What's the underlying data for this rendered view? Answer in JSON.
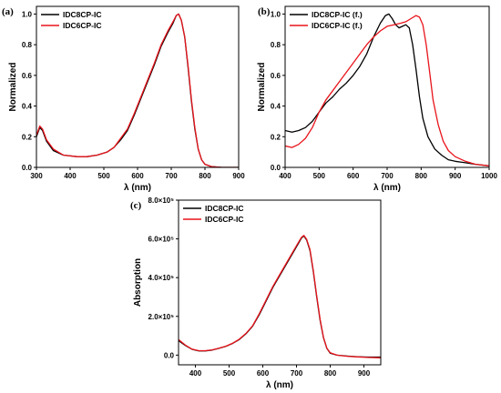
{
  "chart_data": [
    {
      "panel_label": "(a)",
      "type": "line",
      "xlabel": "λ (nm)",
      "ylabel": "Normalized",
      "xlim": [
        300,
        900
      ],
      "ylim": [
        0.0,
        1.05
      ],
      "xticks": [
        300,
        400,
        500,
        600,
        700,
        800,
        900
      ],
      "yticks": [
        0.0,
        0.2,
        0.4,
        0.6,
        0.8,
        1.0
      ],
      "xtick_labels": [
        "300",
        "400",
        "500",
        "600",
        "700",
        "800",
        "900"
      ],
      "ytick_labels": [
        "0.0",
        "0.2",
        "0.4",
        "0.6",
        "0.8",
        "1.0"
      ],
      "legend": "top-left",
      "series": [
        {
          "name": "IDC8CP-IC",
          "color": "#000000",
          "points": [
            [
              300,
              0.2
            ],
            [
              310,
              0.26
            ],
            [
              318,
              0.24
            ],
            [
              330,
              0.17
            ],
            [
              350,
              0.11
            ],
            [
              380,
              0.08
            ],
            [
              420,
              0.07
            ],
            [
              450,
              0.07
            ],
            [
              480,
              0.08
            ],
            [
              510,
              0.1
            ],
            [
              530,
              0.13
            ],
            [
              550,
              0.18
            ],
            [
              570,
              0.24
            ],
            [
              590,
              0.34
            ],
            [
              610,
              0.45
            ],
            [
              630,
              0.56
            ],
            [
              650,
              0.67
            ],
            [
              670,
              0.79
            ],
            [
              690,
              0.88
            ],
            [
              705,
              0.94
            ],
            [
              715,
              0.99
            ],
            [
              722,
              1.0
            ],
            [
              730,
              0.96
            ],
            [
              740,
              0.85
            ],
            [
              750,
              0.65
            ],
            [
              760,
              0.43
            ],
            [
              770,
              0.25
            ],
            [
              780,
              0.12
            ],
            [
              790,
              0.05
            ],
            [
              800,
              0.02
            ],
            [
              820,
              0.005
            ],
            [
              850,
              0.0
            ],
            [
              900,
              0.0
            ]
          ]
        },
        {
          "name": "IDC6CP-IC",
          "color": "#e8141b",
          "points": [
            [
              300,
              0.21
            ],
            [
              310,
              0.27
            ],
            [
              318,
              0.25
            ],
            [
              330,
              0.18
            ],
            [
              350,
              0.12
            ],
            [
              380,
              0.08
            ],
            [
              420,
              0.07
            ],
            [
              450,
              0.07
            ],
            [
              480,
              0.08
            ],
            [
              510,
              0.1
            ],
            [
              530,
              0.13
            ],
            [
              550,
              0.19
            ],
            [
              570,
              0.25
            ],
            [
              590,
              0.35
            ],
            [
              610,
              0.46
            ],
            [
              630,
              0.57
            ],
            [
              650,
              0.68
            ],
            [
              670,
              0.8
            ],
            [
              690,
              0.89
            ],
            [
              705,
              0.95
            ],
            [
              715,
              0.99
            ],
            [
              722,
              1.0
            ],
            [
              730,
              0.96
            ],
            [
              740,
              0.85
            ],
            [
              750,
              0.66
            ],
            [
              760,
              0.44
            ],
            [
              770,
              0.26
            ],
            [
              780,
              0.12
            ],
            [
              790,
              0.05
            ],
            [
              800,
              0.02
            ],
            [
              820,
              0.005
            ],
            [
              850,
              0.0
            ],
            [
              900,
              0.0
            ]
          ]
        }
      ]
    },
    {
      "panel_label": "(b)",
      "type": "line",
      "xlabel": "λ (nm)",
      "ylabel": "Normalized",
      "xlim": [
        400,
        1000
      ],
      "ylim": [
        0.0,
        1.05
      ],
      "xticks": [
        400,
        500,
        600,
        700,
        800,
        900,
        1000
      ],
      "yticks": [
        0.0,
        0.2,
        0.4,
        0.6,
        0.8,
        1.0
      ],
      "xtick_labels": [
        "400",
        "500",
        "600",
        "700",
        "800",
        "900",
        "1000"
      ],
      "ytick_labels": [
        "0.0",
        "0.2",
        "0.4",
        "0.6",
        "0.8",
        "1.0"
      ],
      "legend": "top-left",
      "series": [
        {
          "name": "IDC8CP-IC (f.)",
          "color": "#000000",
          "points": [
            [
              400,
              0.24
            ],
            [
              420,
              0.23
            ],
            [
              440,
              0.24
            ],
            [
              460,
              0.26
            ],
            [
              480,
              0.3
            ],
            [
              500,
              0.36
            ],
            [
              520,
              0.42
            ],
            [
              540,
              0.46
            ],
            [
              560,
              0.51
            ],
            [
              580,
              0.55
            ],
            [
              600,
              0.6
            ],
            [
              620,
              0.66
            ],
            [
              640,
              0.74
            ],
            [
              660,
              0.85
            ],
            [
              680,
              0.94
            ],
            [
              695,
              0.99
            ],
            [
              705,
              1.0
            ],
            [
              715,
              0.97
            ],
            [
              725,
              0.93
            ],
            [
              735,
              0.91
            ],
            [
              745,
              0.92
            ],
            [
              755,
              0.93
            ],
            [
              765,
              0.91
            ],
            [
              775,
              0.8
            ],
            [
              785,
              0.64
            ],
            [
              795,
              0.46
            ],
            [
              805,
              0.32
            ],
            [
              820,
              0.2
            ],
            [
              840,
              0.12
            ],
            [
              860,
              0.08
            ],
            [
              880,
              0.05
            ],
            [
              900,
              0.04
            ],
            [
              930,
              0.03
            ],
            [
              960,
              0.02
            ],
            [
              1000,
              0.01
            ]
          ]
        },
        {
          "name": "IDC6CP-IC (f.)",
          "color": "#e8141b",
          "points": [
            [
              400,
              0.14
            ],
            [
              420,
              0.13
            ],
            [
              440,
              0.15
            ],
            [
              460,
              0.19
            ],
            [
              480,
              0.26
            ],
            [
              500,
              0.36
            ],
            [
              520,
              0.44
            ],
            [
              540,
              0.5
            ],
            [
              560,
              0.56
            ],
            [
              580,
              0.62
            ],
            [
              600,
              0.68
            ],
            [
              620,
              0.74
            ],
            [
              640,
              0.8
            ],
            [
              660,
              0.85
            ],
            [
              680,
              0.89
            ],
            [
              700,
              0.92
            ],
            [
              720,
              0.93
            ],
            [
              740,
              0.94
            ],
            [
              755,
              0.95
            ],
            [
              770,
              0.97
            ],
            [
              785,
              0.99
            ],
            [
              795,
              0.98
            ],
            [
              805,
              0.93
            ],
            [
              815,
              0.8
            ],
            [
              825,
              0.62
            ],
            [
              835,
              0.44
            ],
            [
              850,
              0.28
            ],
            [
              865,
              0.17
            ],
            [
              880,
              0.11
            ],
            [
              900,
              0.07
            ],
            [
              930,
              0.04
            ],
            [
              960,
              0.02
            ],
            [
              1000,
              0.01
            ]
          ]
        }
      ]
    },
    {
      "panel_label": "(c)",
      "type": "line",
      "xlabel": "λ (nm)",
      "ylabel": "Absorption",
      "xlim": [
        350,
        950
      ],
      "ylim": [
        -50000,
        800000
      ],
      "xticks": [
        400,
        500,
        600,
        700,
        800,
        900
      ],
      "yticks": [
        0,
        200000,
        400000,
        600000,
        800000
      ],
      "xtick_labels": [
        "400",
        "500",
        "600",
        "700",
        "800",
        "900"
      ],
      "ytick_labels": [
        "0.0",
        "2.0×10⁵",
        "4.0×10⁵",
        "6.0×10⁵",
        "8.0×10⁵"
      ],
      "legend": "top-left",
      "series": [
        {
          "name": "IDC8CP-IC",
          "color": "#000000",
          "points": [
            [
              350,
              75000
            ],
            [
              370,
              50000
            ],
            [
              390,
              30000
            ],
            [
              410,
              22000
            ],
            [
              430,
              22000
            ],
            [
              450,
              26000
            ],
            [
              470,
              35000
            ],
            [
              490,
              45000
            ],
            [
              510,
              60000
            ],
            [
              530,
              80000
            ],
            [
              550,
              110000
            ],
            [
              570,
              150000
            ],
            [
              590,
              210000
            ],
            [
              610,
              280000
            ],
            [
              630,
              350000
            ],
            [
              650,
              410000
            ],
            [
              670,
              470000
            ],
            [
              690,
              530000
            ],
            [
              705,
              575000
            ],
            [
              715,
              605000
            ],
            [
              722,
              615000
            ],
            [
              730,
              595000
            ],
            [
              740,
              540000
            ],
            [
              750,
              430000
            ],
            [
              760,
              300000
            ],
            [
              770,
              180000
            ],
            [
              780,
              90000
            ],
            [
              790,
              35000
            ],
            [
              800,
              10000
            ],
            [
              820,
              0
            ],
            [
              850,
              -5000
            ],
            [
              880,
              -8000
            ],
            [
              910,
              -10000
            ],
            [
              950,
              -10000
            ]
          ]
        },
        {
          "name": "IDC6CP-IC",
          "color": "#e8141b",
          "points": [
            [
              350,
              80000
            ],
            [
              370,
              52000
            ],
            [
              390,
              31000
            ],
            [
              410,
              23000
            ],
            [
              430,
              23000
            ],
            [
              450,
              27000
            ],
            [
              470,
              36000
            ],
            [
              490,
              46000
            ],
            [
              510,
              61000
            ],
            [
              530,
              82000
            ],
            [
              550,
              112000
            ],
            [
              570,
              152000
            ],
            [
              590,
              215000
            ],
            [
              610,
              285000
            ],
            [
              630,
              355000
            ],
            [
              650,
              415000
            ],
            [
              670,
              475000
            ],
            [
              690,
              535000
            ],
            [
              705,
              580000
            ],
            [
              715,
              608000
            ],
            [
              722,
              618000
            ],
            [
              730,
              598000
            ],
            [
              740,
              545000
            ],
            [
              750,
              435000
            ],
            [
              760,
              305000
            ],
            [
              770,
              185000
            ],
            [
              780,
              92000
            ],
            [
              790,
              36000
            ],
            [
              800,
              12000
            ],
            [
              820,
              0
            ],
            [
              850,
              -6000
            ],
            [
              880,
              -9000
            ],
            [
              910,
              -12000
            ],
            [
              950,
              -14000
            ]
          ]
        }
      ]
    }
  ]
}
